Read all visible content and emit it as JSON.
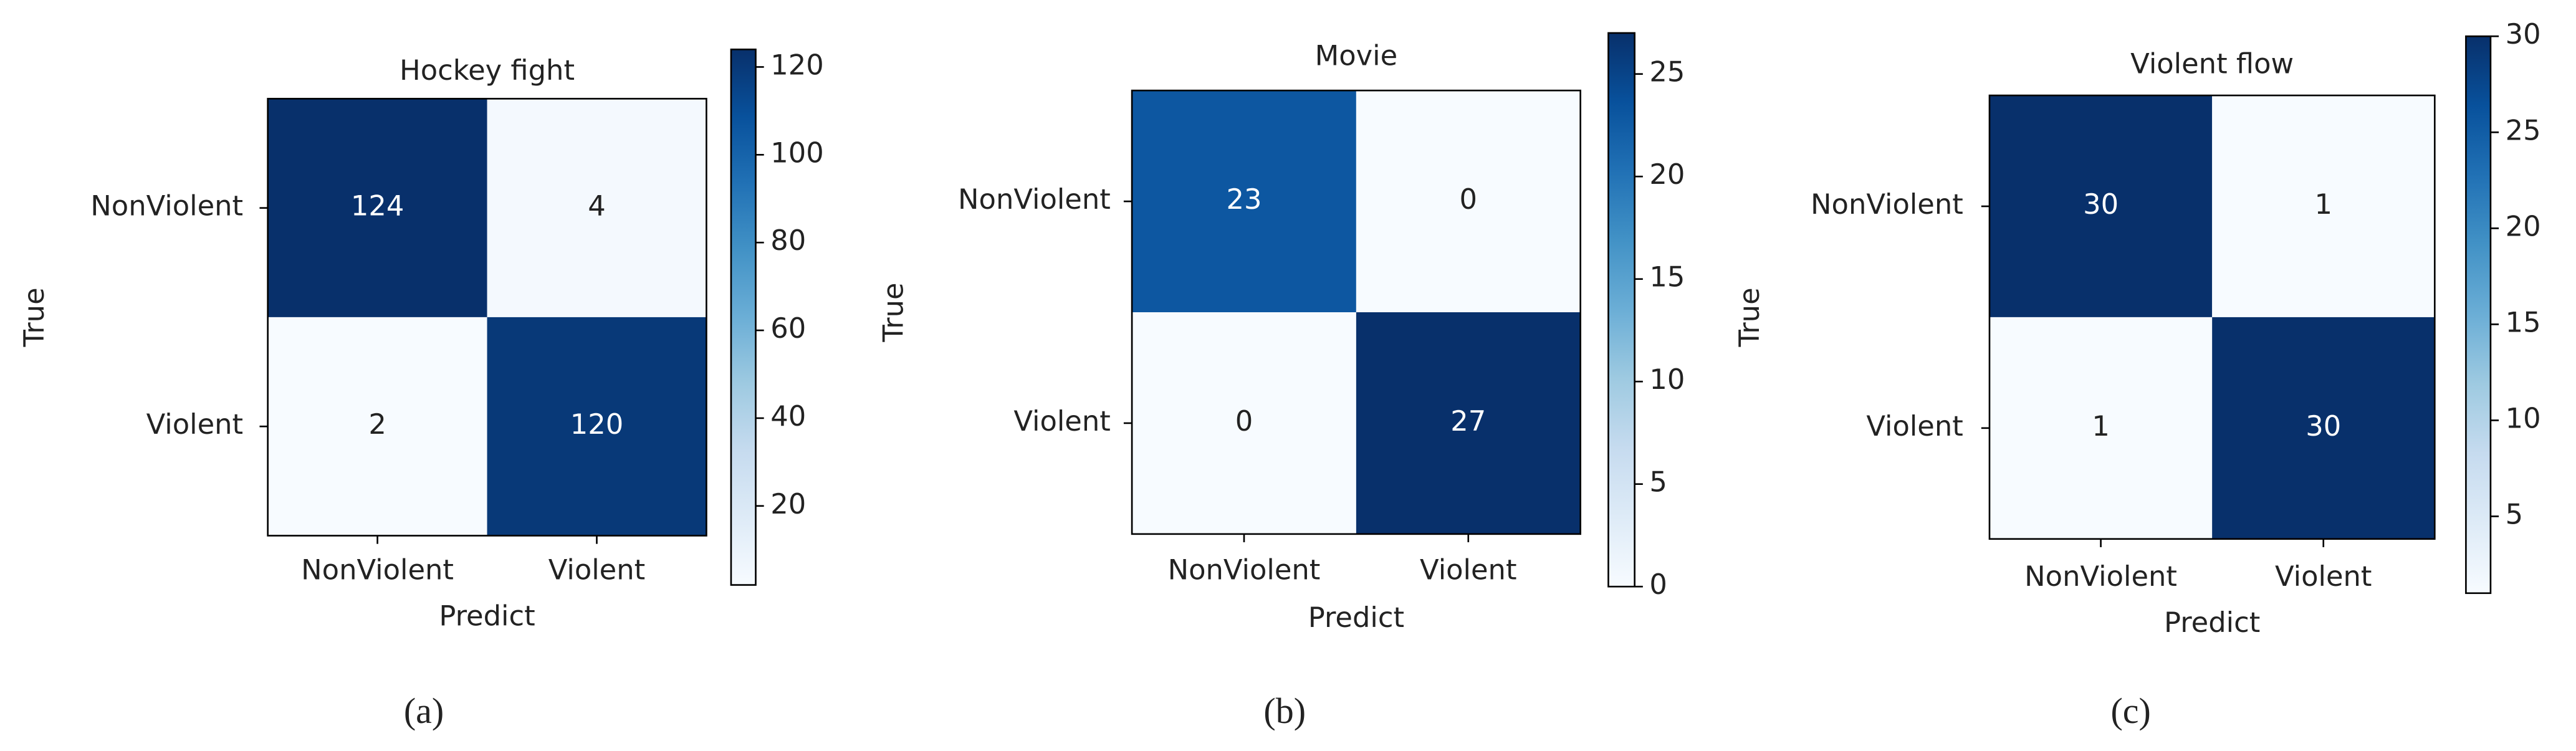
{
  "chart_data": [
    {
      "type": "heatmap",
      "title": "Hockey fight",
      "x_categories": [
        "NonViolent",
        "Violent"
      ],
      "y_categories": [
        "NonViolent",
        "Violent"
      ],
      "values": [
        [
          124,
          4
        ],
        [
          2,
          120
        ]
      ],
      "xlabel": "Predict",
      "ylabel": "True",
      "colormap": "Blues",
      "clim": [
        2,
        124
      ],
      "cticks": [
        20,
        40,
        60,
        80,
        100,
        120
      ],
      "caption": "(a)"
    },
    {
      "type": "heatmap",
      "title": "Movie",
      "x_categories": [
        "NonViolent",
        "Violent"
      ],
      "y_categories": [
        "NonViolent",
        "Violent"
      ],
      "values": [
        [
          23,
          0
        ],
        [
          0,
          27
        ]
      ],
      "xlabel": "Predict",
      "ylabel": "True",
      "colormap": "Blues",
      "clim": [
        0,
        27
      ],
      "cticks": [
        0,
        5,
        10,
        15,
        20,
        25
      ],
      "caption": "(b)"
    },
    {
      "type": "heatmap",
      "title": "Violent flow",
      "x_categories": [
        "NonViolent",
        "Violent"
      ],
      "y_categories": [
        "NonViolent",
        "Violent"
      ],
      "values": [
        [
          30,
          1
        ],
        [
          1,
          30
        ]
      ],
      "xlabel": "Predict",
      "ylabel": "True",
      "colormap": "Blues",
      "clim": [
        1,
        30
      ],
      "cticks": [
        5,
        10,
        15,
        20,
        25,
        30
      ],
      "caption": "(c)"
    }
  ]
}
